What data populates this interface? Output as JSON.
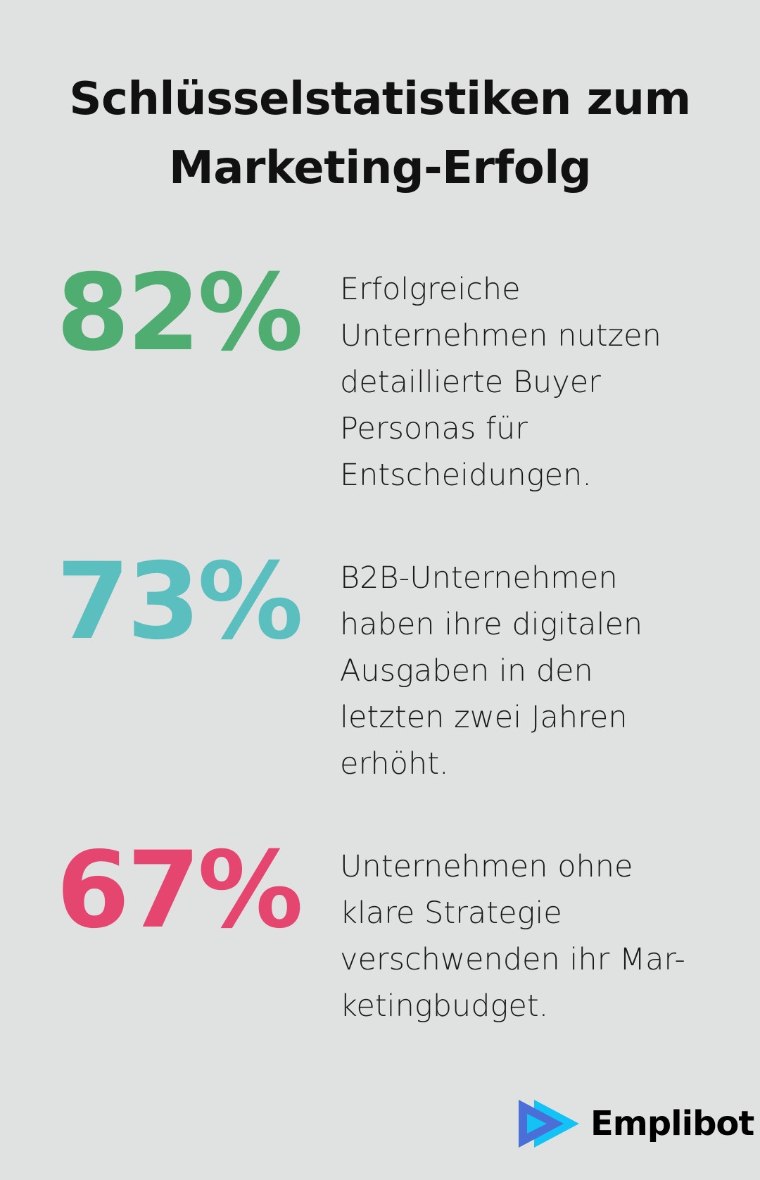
{
  "title": {
    "line1": "Schlüsselstatistiken zum",
    "line2": "Marketing-Erfolg"
  },
  "stats": [
    {
      "value": "82%",
      "color": "#4fad72",
      "text": "Erfolgreiche Unternehmen nutzen detaillierte Buyer Personas für Entscheidungen."
    },
    {
      "value": "73%",
      "color": "#5bbfbf",
      "text": "B2B-Unternehmen haben ihre digitalen Ausgaben in den letzten zwei Jahren erhöht."
    },
    {
      "value": "67%",
      "color": "#e5466f",
      "text": "Unternehmen ohne klare Strategie verschwenden ihr Mar-ketingbudget."
    }
  ],
  "logo": {
    "name": "Emplibot",
    "colors": [
      "#4a6fd6",
      "#13c3f5"
    ]
  }
}
